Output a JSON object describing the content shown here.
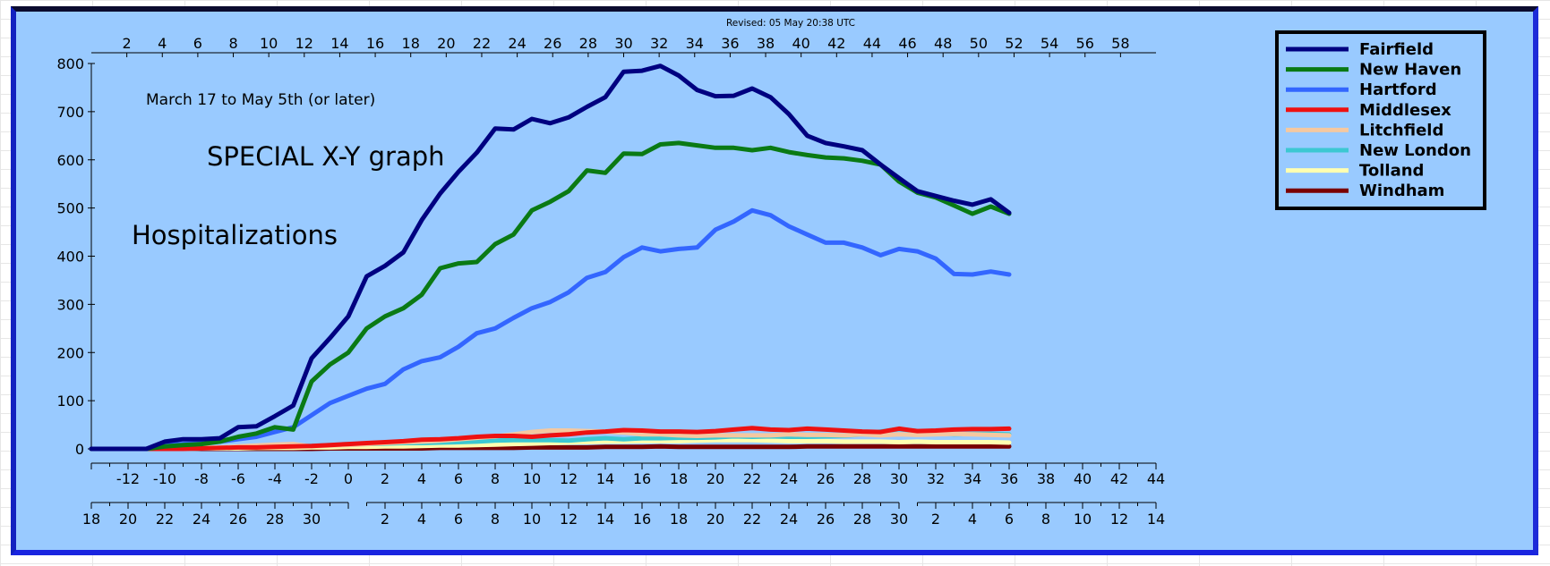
{
  "chart_data": {
    "type": "line",
    "revised": "Revised: 05 May 20:38 UTC",
    "annotations": {
      "date_range": "March 17 to May 5th (or later)",
      "special": "SPECIAL X-Y graph",
      "metric": "Hospitalizations"
    },
    "ylim": [
      0,
      800
    ],
    "y_ticks": [
      0,
      100,
      200,
      300,
      400,
      500,
      600,
      700,
      800
    ],
    "xlim": [
      -14,
      44
    ],
    "bottom_x_ticks": [
      -12,
      -10,
      -8,
      -6,
      -4,
      -2,
      0,
      2,
      4,
      6,
      8,
      10,
      12,
      14,
      16,
      18,
      20,
      22,
      24,
      26,
      28,
      30,
      32,
      34,
      36,
      38,
      40,
      42,
      44
    ],
    "top_x_ticks": [
      2,
      4,
      6,
      8,
      10,
      12,
      14,
      16,
      18,
      20,
      22,
      24,
      26,
      28,
      30,
      32,
      34,
      36,
      38,
      40,
      42,
      44,
      46,
      48,
      50,
      52,
      54,
      56,
      58
    ],
    "date_ticks": {
      "march": [
        "18",
        "20",
        "22",
        "24",
        "26",
        "28",
        "30"
      ],
      "april": [
        "2",
        "4",
        "6",
        "8",
        "10",
        "12",
        "14",
        "16",
        "18",
        "20",
        "22",
        "24",
        "26",
        "28",
        "30"
      ],
      "may": [
        "2",
        "4",
        "6",
        "8",
        "10",
        "12",
        "14"
      ]
    },
    "legend_position": "top-right",
    "grid": false,
    "x": [
      -14,
      -13,
      -12,
      -11,
      -10,
      -9,
      -8,
      -7,
      -6,
      -5,
      -4,
      -3,
      -2,
      -1,
      0,
      1,
      2,
      3,
      4,
      5,
      6,
      7,
      8,
      9,
      10,
      11,
      12,
      13,
      14,
      15,
      16,
      17,
      18,
      19,
      20,
      21,
      22,
      23,
      24,
      25,
      26,
      27,
      28,
      29,
      30,
      31,
      32,
      33,
      34,
      35,
      36
    ],
    "series": [
      {
        "name": "Fairfield",
        "color": "#000080",
        "values": [
          0,
          0,
          0,
          0,
          15,
          20,
          20,
          22,
          45,
          47,
          68,
          90,
          188,
          230,
          275,
          358,
          380,
          408,
          475,
          530,
          575,
          615,
          665,
          663,
          685,
          676,
          688,
          710,
          730,
          783,
          785,
          795,
          775,
          745,
          732,
          733,
          748,
          730,
          695,
          650,
          635,
          628,
          620,
          590,
          562,
          535,
          525,
          515,
          507,
          518,
          490
        ]
      },
      {
        "name": "New Haven",
        "color": "#0a7a14",
        "values": [
          0,
          0,
          0,
          0,
          5,
          8,
          10,
          15,
          25,
          32,
          45,
          40,
          140,
          175,
          200,
          250,
          275,
          292,
          320,
          375,
          385,
          388,
          425,
          445,
          495,
          513,
          535,
          578,
          573,
          613,
          612,
          632,
          635,
          630,
          625,
          625,
          620,
          625,
          616,
          610,
          605,
          603,
          598,
          590,
          555,
          532,
          522,
          505,
          488,
          503,
          488
        ]
      },
      {
        "name": "Hartford",
        "color": "#3366ff",
        "values": [
          0,
          0,
          0,
          0,
          8,
          10,
          12,
          15,
          20,
          25,
          35,
          45,
          70,
          95,
          110,
          125,
          135,
          165,
          182,
          190,
          212,
          240,
          250,
          272,
          292,
          305,
          325,
          355,
          367,
          398,
          418,
          410,
          415,
          418,
          455,
          472,
          495,
          485,
          462,
          445,
          428,
          428,
          418,
          402,
          415,
          410,
          395,
          363,
          362,
          368,
          362
        ]
      },
      {
        "name": "Middlesex",
        "color": "#ee1111",
        "values": [
          0,
          0,
          0,
          0,
          0,
          0,
          1,
          2,
          3,
          3,
          4,
          5,
          6,
          8,
          10,
          12,
          14,
          16,
          19,
          20,
          22,
          25,
          27,
          27,
          25,
          28,
          30,
          34,
          36,
          39,
          38,
          36,
          36,
          35,
          37,
          40,
          43,
          40,
          39,
          42,
          40,
          38,
          36,
          35,
          42,
          37,
          38,
          40,
          41,
          41,
          42
        ]
      },
      {
        "name": "Litchfield",
        "color": "#f5c8a0",
        "values": [
          0,
          0,
          0,
          0,
          0,
          0,
          2,
          3,
          5,
          7,
          9,
          10,
          5,
          7,
          8,
          10,
          12,
          14,
          15,
          17,
          20,
          23,
          26,
          30,
          35,
          38,
          38,
          37,
          36,
          34,
          30,
          30,
          28,
          27,
          28,
          28,
          28,
          28,
          30,
          29,
          29,
          28,
          30,
          28,
          30,
          29,
          30,
          31,
          30,
          29,
          28
        ]
      },
      {
        "name": "New London",
        "color": "#3cc8d2",
        "values": [
          0,
          0,
          0,
          0,
          0,
          0,
          1,
          2,
          3,
          4,
          5,
          6,
          6,
          8,
          10,
          10,
          11,
          12,
          12,
          13,
          14,
          15,
          17,
          18,
          18,
          18,
          17,
          20,
          22,
          20,
          22,
          22,
          23,
          23,
          24,
          26,
          25,
          26,
          25,
          25,
          26,
          27,
          30,
          36,
          41,
          37,
          33,
          30,
          31,
          31,
          30
        ]
      },
      {
        "name": "Tolland",
        "color": "#ffffb0",
        "values": [
          0,
          0,
          0,
          0,
          0,
          0,
          1,
          1,
          1,
          2,
          2,
          2,
          3,
          3,
          4,
          4,
          5,
          5,
          6,
          7,
          7,
          8,
          9,
          10,
          11,
          12,
          13,
          14,
          15,
          15,
          16,
          16,
          16,
          17,
          18,
          18,
          18,
          17,
          16,
          16,
          16,
          15,
          15,
          15,
          14,
          15,
          14,
          14,
          14,
          14,
          13
        ]
      },
      {
        "name": "Windham",
        "color": "#7a0000",
        "values": [
          0,
          0,
          0,
          0,
          0,
          0,
          0,
          0,
          0,
          0,
          0,
          0,
          0,
          1,
          1,
          1,
          1,
          1,
          1,
          2,
          2,
          2,
          2,
          2,
          3,
          3,
          3,
          3,
          4,
          4,
          4,
          5,
          4,
          4,
          4,
          4,
          4,
          4,
          4,
          5,
          5,
          5,
          5,
          5,
          5,
          5,
          5,
          5,
          5,
          5,
          5
        ]
      }
    ]
  }
}
